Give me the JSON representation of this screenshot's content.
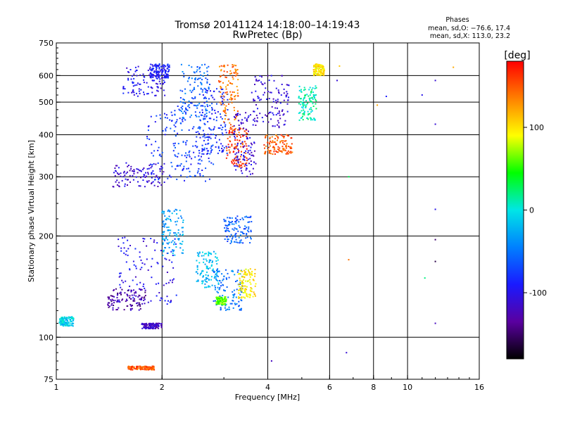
{
  "chart_data": {
    "type": "scatter",
    "title": "Tromsø 20141124  14:18:00–14:19:43",
    "subtitle": "RwPretec (Bp)",
    "xlabel": "Frequency [MHz]",
    "ylabel": "Stationary phase Virtual Height [km]",
    "x_scale": "log",
    "y_scale": "log",
    "xlim": [
      1,
      16
    ],
    "ylim": [
      75,
      750
    ],
    "x_ticks": [
      1,
      2,
      4,
      6,
      8,
      10,
      16
    ],
    "y_ticks": [
      75,
      100,
      200,
      300,
      400,
      500,
      600,
      750
    ],
    "x_gridlines": [
      2,
      4,
      6,
      8,
      10
    ],
    "y_gridlines": [
      100,
      200,
      300,
      400,
      500,
      600
    ],
    "grid": true,
    "color_variable": "phase",
    "colorbar": {
      "label": "[deg]",
      "ticks": [
        100,
        0,
        -100
      ],
      "range": [
        -180,
        180
      ],
      "colors": [
        "#000000",
        "#5a00a0",
        "#1a1aff",
        "#0080ff",
        "#00e6e6",
        "#00ff00",
        "#ffff00",
        "#ff8000",
        "#ff0000"
      ]
    },
    "info_box": {
      "heading": "Phases",
      "line1": "mean, sd,O: −76.6, 17.4",
      "line2": "mean, sd,X: 113.0, 23.2"
    },
    "clusters": [
      {
        "f": [
          1.55,
          2.05
        ],
        "h": [
          520,
          640
        ],
        "phase": -100
      },
      {
        "f": [
          1.85,
          2.1
        ],
        "h": [
          590,
          650
        ],
        "phase": -90
      },
      {
        "f": [
          1.45,
          2.05
        ],
        "h": [
          280,
          330
        ],
        "phase": -110
      },
      {
        "f": [
          1.8,
          2.8
        ],
        "h": [
          290,
          470
        ],
        "phase": -80
      },
      {
        "f": [
          2.1,
          2.8
        ],
        "h": [
          300,
          500
        ],
        "phase": -70
      },
      {
        "f": [
          2.25,
          2.75
        ],
        "h": [
          450,
          650
        ],
        "phase": -55
      },
      {
        "f": [
          2.6,
          3.1
        ],
        "h": [
          350,
          550
        ],
        "phase": -85
      },
      {
        "f": [
          2.9,
          3.3
        ],
        "h": [
          420,
          650
        ],
        "phase": 140
      },
      {
        "f": [
          3.05,
          3.5
        ],
        "h": [
          320,
          420
        ],
        "phase": 160
      },
      {
        "f": [
          3.2,
          3.7
        ],
        "h": [
          300,
          470
        ],
        "phase": -110
      },
      {
        "f": [
          3.6,
          4.6
        ],
        "h": [
          420,
          600
        ],
        "phase": -110
      },
      {
        "f": [
          3.9,
          4.7
        ],
        "h": [
          350,
          400
        ],
        "phase": 150
      },
      {
        "f": [
          4.9,
          5.5
        ],
        "h": [
          440,
          560
        ],
        "phase": 10
      },
      {
        "f": [
          5.4,
          5.8
        ],
        "h": [
          600,
          650
        ],
        "phase": 100
      },
      {
        "f": [
          1.5,
          2.2
        ],
        "h": [
          125,
          200
        ],
        "phase": -100
      },
      {
        "f": [
          1.4,
          1.8
        ],
        "h": [
          120,
          140
        ],
        "phase": -130
      },
      {
        "f": [
          2.0,
          2.3
        ],
        "h": [
          175,
          240
        ],
        "phase": -30
      },
      {
        "f": [
          2.5,
          2.9
        ],
        "h": [
          140,
          180
        ],
        "phase": -20
      },
      {
        "f": [
          2.8,
          3.4
        ],
        "h": [
          120,
          160
        ],
        "phase": -50
      },
      {
        "f": [
          2.85,
          3.05
        ],
        "h": [
          125,
          132
        ],
        "phase": 60
      },
      {
        "f": [
          3.3,
          3.7
        ],
        "h": [
          130,
          160
        ],
        "phase": 100
      },
      {
        "f": [
          3.0,
          3.6
        ],
        "h": [
          190,
          230
        ],
        "phase": -60
      },
      {
        "f": [
          1.75,
          2.0
        ],
        "h": [
          106,
          110
        ],
        "phase": -120
      },
      {
        "f": [
          1.02,
          1.12
        ],
        "h": [
          108,
          115
        ],
        "phase": -10
      },
      {
        "f": [
          1.6,
          1.9
        ],
        "h": [
          80,
          82
        ],
        "phase": 150
      }
    ],
    "isolated_points": [
      {
        "f": 6.7,
        "h": 90,
        "phase": -110
      },
      {
        "f": 6.8,
        "h": 300,
        "phase": 30
      },
      {
        "f": 6.8,
        "h": 170,
        "phase": 140
      },
      {
        "f": 6.3,
        "h": 580,
        "phase": -110
      },
      {
        "f": 8.7,
        "h": 520,
        "phase": -90
      },
      {
        "f": 11.0,
        "h": 525,
        "phase": -100
      },
      {
        "f": 12.0,
        "h": 580,
        "phase": -110
      },
      {
        "f": 12.0,
        "h": 430,
        "phase": -110
      },
      {
        "f": 12.0,
        "h": 240,
        "phase": -100
      },
      {
        "f": 12.0,
        "h": 195,
        "phase": -150
      },
      {
        "f": 12.0,
        "h": 168,
        "phase": -160
      },
      {
        "f": 12.0,
        "h": 110,
        "phase": -120
      },
      {
        "f": 13.5,
        "h": 635,
        "phase": 120
      },
      {
        "f": 4.1,
        "h": 85,
        "phase": -120
      },
      {
        "f": 4.2,
        "h": 380,
        "phase": 130
      },
      {
        "f": 6.4,
        "h": 640,
        "phase": 110
      },
      {
        "f": 8.2,
        "h": 490,
        "phase": 120
      },
      {
        "f": 11.2,
        "h": 150,
        "phase": 20
      }
    ]
  }
}
